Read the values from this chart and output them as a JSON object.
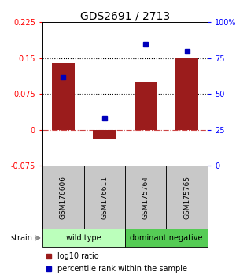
{
  "title": "GDS2691 / 2713",
  "samples": [
    "GSM176606",
    "GSM176611",
    "GSM175764",
    "GSM175765"
  ],
  "log10_ratio": [
    0.14,
    -0.02,
    0.1,
    0.152
  ],
  "percentile_rank": [
    62,
    33,
    85,
    80
  ],
  "ylim_left": [
    -0.075,
    0.225
  ],
  "ylim_right": [
    0,
    100
  ],
  "yticks_left": [
    -0.075,
    0,
    0.075,
    0.15,
    0.225
  ],
  "yticks_right": [
    0,
    25,
    50,
    75,
    100
  ],
  "ytick_labels_left": [
    "-0.075",
    "0",
    "0.075",
    "0.15",
    "0.225"
  ],
  "ytick_labels_right": [
    "0",
    "25",
    "50",
    "75",
    "100%"
  ],
  "hlines_dotted": [
    0.075,
    0.15
  ],
  "hline_dashed": 0,
  "bar_color": "#9b1c1c",
  "dot_color": "#0000bb",
  "groups": [
    {
      "label": "wild type",
      "indices": [
        0,
        1
      ],
      "color": "#bbffbb"
    },
    {
      "label": "dominant negative",
      "indices": [
        2,
        3
      ],
      "color": "#55cc55"
    }
  ],
  "group_row_color": "#c8c8c8",
  "legend_bar_label": "log10 ratio",
  "legend_dot_label": "percentile rank within the sample",
  "strain_label": "strain",
  "background_color": "#ffffff"
}
